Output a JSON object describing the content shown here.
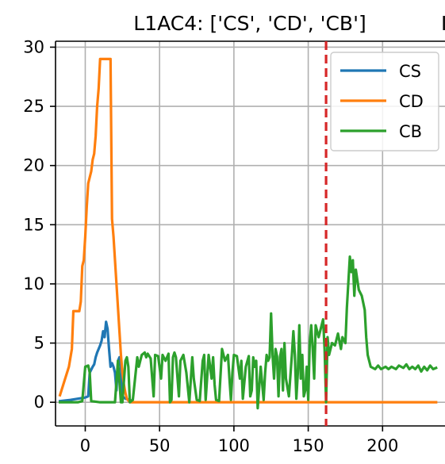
{
  "chart_data": {
    "type": "line",
    "title": "L1AC4: ['CS', 'CD', 'CB']",
    "title_cut": "I",
    "xlabel": "",
    "ylabel": "",
    "xlim": [
      -20,
      242
    ],
    "ylim": [
      -2,
      30.5
    ],
    "x_ticks": [
      0,
      50,
      100,
      150,
      200
    ],
    "y_ticks": [
      0,
      5,
      10,
      15,
      20,
      25,
      30
    ],
    "grid": true,
    "legend_position": "top-right",
    "vline": {
      "x": 162,
      "color": "#d62728",
      "style": "dashed"
    },
    "series": [
      {
        "name": "CS",
        "color": "#1f77b4",
        "points": [
          [
            -17,
            0.1
          ],
          [
            -10,
            0.2
          ],
          [
            -5,
            0.3
          ],
          [
            0,
            0.4
          ],
          [
            2,
            0.5
          ],
          [
            3,
            2.5
          ],
          [
            5,
            3.0
          ],
          [
            6,
            3.2
          ],
          [
            7,
            3.8
          ],
          [
            8,
            4.2
          ],
          [
            9,
            4.5
          ],
          [
            10,
            4.8
          ],
          [
            11,
            5.2
          ],
          [
            12,
            6.0
          ],
          [
            13,
            5.5
          ],
          [
            14,
            6.8
          ],
          [
            15,
            6.2
          ],
          [
            16,
            4.5
          ],
          [
            17,
            3.0
          ],
          [
            18,
            3.3
          ],
          [
            19,
            3.0
          ],
          [
            20,
            2.5
          ],
          [
            21,
            1.0
          ],
          [
            22,
            3.5
          ],
          [
            23,
            3.8
          ],
          [
            24,
            3.0
          ],
          [
            25,
            0.5
          ],
          [
            27,
            0.3
          ],
          [
            30,
            0.2
          ]
        ]
      },
      {
        "name": "CD",
        "color": "#ff7f0e",
        "points": [
          [
            -17,
            0.6
          ],
          [
            -14,
            1.8
          ],
          [
            -11,
            3.0
          ],
          [
            -9,
            4.5
          ],
          [
            -8,
            7.7
          ],
          [
            -4,
            7.7
          ],
          [
            -3,
            8.5
          ],
          [
            -2,
            11.5
          ],
          [
            -1,
            12.0
          ],
          [
            0,
            14.0
          ],
          [
            1,
            16.5
          ],
          [
            2,
            18.5
          ],
          [
            3,
            19.0
          ],
          [
            4,
            19.5
          ],
          [
            5,
            20.5
          ],
          [
            6,
            21.0
          ],
          [
            7,
            22.5
          ],
          [
            8,
            25.0
          ],
          [
            9,
            26.5
          ],
          [
            10,
            29.0
          ],
          [
            17,
            29.0
          ],
          [
            18,
            15.5
          ],
          [
            19,
            14.0
          ],
          [
            20,
            12.0
          ],
          [
            21,
            10.0
          ],
          [
            22,
            8.0
          ],
          [
            23,
            6.0
          ],
          [
            24,
            4.0
          ],
          [
            25,
            2.5
          ],
          [
            26,
            1.5
          ],
          [
            27,
            0.8
          ],
          [
            28,
            0.3
          ],
          [
            30,
            0.0
          ],
          [
            35,
            0.0
          ],
          [
            100,
            0.0
          ],
          [
            200,
            0.0
          ],
          [
            236,
            0.0
          ]
        ]
      },
      {
        "name": "CB",
        "color": "#2ca02c",
        "points": [
          [
            -17,
            0.0
          ],
          [
            -5,
            0.0
          ],
          [
            -2,
            0.1
          ],
          [
            0,
            3.0
          ],
          [
            2,
            3.1
          ],
          [
            3,
            2.5
          ],
          [
            4,
            0.1
          ],
          [
            10,
            0.0
          ],
          [
            20,
            0.0
          ],
          [
            22,
            3.5
          ],
          [
            24,
            0.0
          ],
          [
            25,
            0.0
          ],
          [
            27,
            3.5
          ],
          [
            28,
            3.8
          ],
          [
            29,
            3.0
          ],
          [
            30,
            0.0
          ],
          [
            32,
            0.2
          ],
          [
            35,
            3.8
          ],
          [
            36,
            3.0
          ],
          [
            38,
            4.0
          ],
          [
            40,
            4.2
          ],
          [
            41,
            3.8
          ],
          [
            42,
            4.1
          ],
          [
            44,
            3.7
          ],
          [
            46,
            0.5
          ],
          [
            47,
            4.0
          ],
          [
            49,
            3.9
          ],
          [
            51,
            2.0
          ],
          [
            52,
            4.0
          ],
          [
            54,
            3.5
          ],
          [
            56,
            4.1
          ],
          [
            57,
            0.0
          ],
          [
            58,
            0.2
          ],
          [
            59,
            3.8
          ],
          [
            60,
            4.2
          ],
          [
            61,
            3.8
          ],
          [
            63,
            0.5
          ],
          [
            64,
            3.5
          ],
          [
            66,
            4.0
          ],
          [
            68,
            2.5
          ],
          [
            70,
            0.0
          ],
          [
            72,
            3.8
          ],
          [
            73,
            2.0
          ],
          [
            75,
            0.2
          ],
          [
            77,
            0.1
          ],
          [
            79,
            3.5
          ],
          [
            80,
            4.0
          ],
          [
            81,
            0.2
          ],
          [
            83,
            4.0
          ],
          [
            84,
            3.0
          ],
          [
            85,
            2.0
          ],
          [
            86,
            3.8
          ],
          [
            87,
            1.5
          ],
          [
            88,
            0.2
          ],
          [
            90,
            0.1
          ],
          [
            92,
            4.5
          ],
          [
            93,
            4.0
          ],
          [
            94,
            3.5
          ],
          [
            96,
            4.0
          ],
          [
            97,
            2.0
          ],
          [
            98,
            0.2
          ],
          [
            99,
            2.5
          ],
          [
            100,
            4.0
          ],
          [
            102,
            3.9
          ],
          [
            104,
            2.0
          ],
          [
            105,
            3.5
          ],
          [
            106,
            0.3
          ],
          [
            108,
            3.0
          ],
          [
            110,
            3.9
          ],
          [
            111,
            0.5
          ],
          [
            112,
            1.0
          ],
          [
            113,
            3.8
          ],
          [
            114,
            3.0
          ],
          [
            115,
            3.5
          ],
          [
            116,
            -0.5
          ],
          [
            118,
            3.0
          ],
          [
            120,
            0.2
          ],
          [
            121,
            2.5
          ],
          [
            122,
            4.0
          ],
          [
            123,
            3.5
          ],
          [
            124,
            3.8
          ],
          [
            125,
            7.5
          ],
          [
            126,
            4.0
          ],
          [
            127,
            2.0
          ],
          [
            128,
            4.5
          ],
          [
            129,
            3.9
          ],
          [
            130,
            0.5
          ],
          [
            131,
            3.8
          ],
          [
            132,
            4.5
          ],
          [
            133,
            1.0
          ],
          [
            134,
            5.0
          ],
          [
            135,
            2.0
          ],
          [
            137,
            0.5
          ],
          [
            139,
            4.0
          ],
          [
            140,
            6.0
          ],
          [
            141,
            4.0
          ],
          [
            142,
            0.3
          ],
          [
            143,
            2.5
          ],
          [
            144,
            6.5
          ],
          [
            145,
            2.0
          ],
          [
            146,
            4.0
          ],
          [
            147,
            0.5
          ],
          [
            148,
            1.0
          ],
          [
            149,
            3.0
          ],
          [
            150,
            0.2
          ],
          [
            151,
            5.0
          ],
          [
            152,
            6.5
          ],
          [
            153,
            4.5
          ],
          [
            154,
            2.0
          ],
          [
            155,
            6.5
          ],
          [
            157,
            5.5
          ],
          [
            159,
            6.5
          ],
          [
            160,
            7.0
          ],
          [
            161,
            4.5
          ],
          [
            162,
            0.0
          ],
          [
            163,
            5.5
          ],
          [
            164,
            4.0
          ],
          [
            166,
            5.0
          ],
          [
            168,
            4.8
          ],
          [
            170,
            5.8
          ],
          [
            172,
            4.5
          ],
          [
            173,
            5.5
          ],
          [
            175,
            5.0
          ],
          [
            176,
            8.0
          ],
          [
            178,
            12.3
          ],
          [
            179,
            11.0
          ],
          [
            180,
            12.0
          ],
          [
            181,
            9.0
          ],
          [
            182,
            11.2
          ],
          [
            184,
            9.5
          ],
          [
            186,
            9.0
          ],
          [
            188,
            7.8
          ],
          [
            189,
            5.5
          ],
          [
            190,
            4.0
          ],
          [
            192,
            3.0
          ],
          [
            195,
            2.8
          ],
          [
            197,
            3.1
          ],
          [
            199,
            2.8
          ],
          [
            202,
            3.0
          ],
          [
            204,
            2.8
          ],
          [
            206,
            3.0
          ],
          [
            209,
            2.8
          ],
          [
            211,
            3.1
          ],
          [
            214,
            2.9
          ],
          [
            216,
            3.2
          ],
          [
            218,
            2.8
          ],
          [
            220,
            3.0
          ],
          [
            222,
            2.8
          ],
          [
            224,
            3.1
          ],
          [
            226,
            2.6
          ],
          [
            228,
            3.0
          ],
          [
            230,
            2.7
          ],
          [
            232,
            3.1
          ],
          [
            234,
            2.8
          ],
          [
            236,
            2.9
          ]
        ]
      }
    ]
  }
}
